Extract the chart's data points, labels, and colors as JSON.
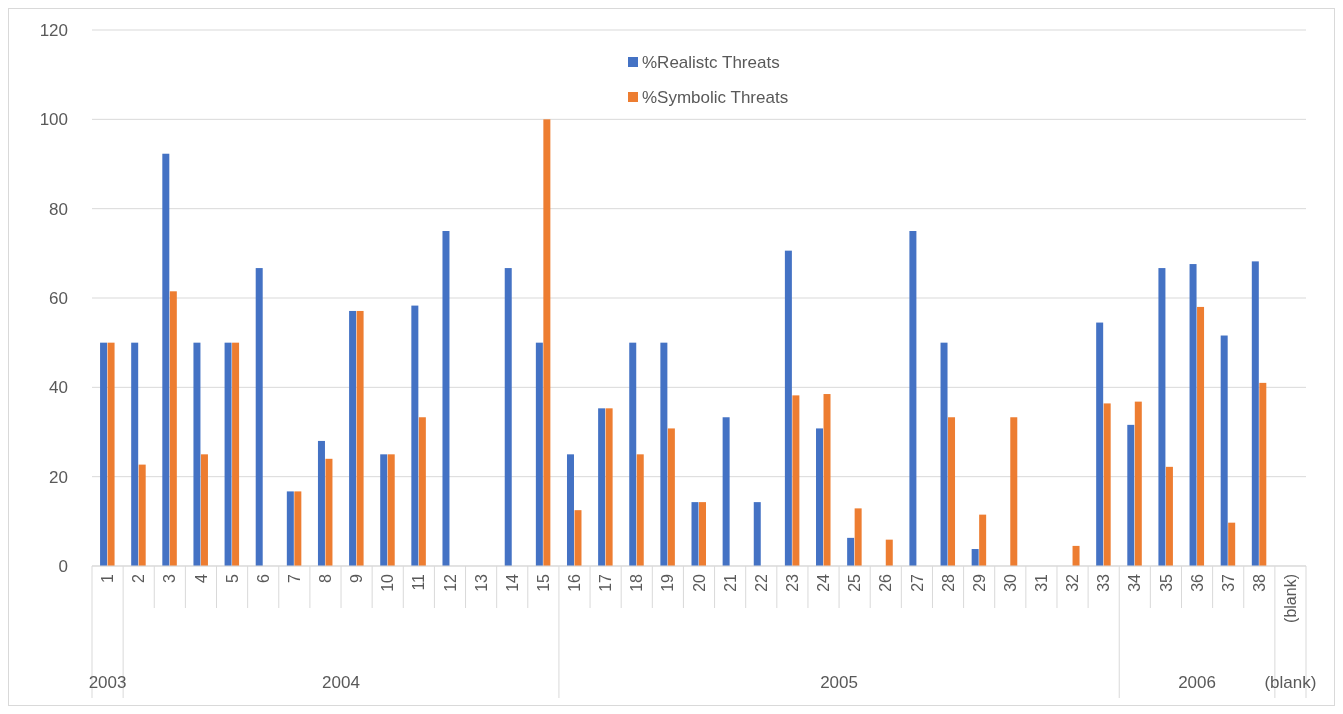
{
  "chart_data": {
    "type": "bar",
    "categories": [
      "1",
      "2",
      "3",
      "4",
      "5",
      "6",
      "7",
      "8",
      "9",
      "10",
      "11",
      "12",
      "13",
      "14",
      "15",
      "16",
      "17",
      "18",
      "19",
      "20",
      "21",
      "22",
      "23",
      "24",
      "25",
      "26",
      "27",
      "28",
      "29",
      "30",
      "31",
      "32",
      "33",
      "34",
      "35",
      "36",
      "37",
      "38",
      "(blank)"
    ],
    "series": [
      {
        "name": "%Realistc Threats",
        "color": "#4472c4",
        "values": [
          50,
          50,
          92.3,
          50,
          50,
          66.7,
          16.7,
          28,
          57.1,
          25,
          58.3,
          75,
          0,
          66.7,
          50,
          25,
          35.3,
          50,
          50,
          14.3,
          33.3,
          14.3,
          70.6,
          30.8,
          6.3,
          0,
          75,
          50,
          3.8,
          0,
          0,
          0,
          54.5,
          31.6,
          66.7,
          67.6,
          51.6,
          68.2,
          null
        ]
      },
      {
        "name": "%Symbolic Threats",
        "color": "#ed7d31",
        "values": [
          50,
          22.7,
          61.5,
          25,
          50,
          0,
          16.7,
          24,
          57.1,
          25,
          33.3,
          0,
          0,
          0,
          100,
          12.5,
          35.3,
          25,
          30.8,
          14.3,
          0,
          0,
          38.2,
          38.5,
          12.9,
          5.9,
          0,
          33.3,
          11.5,
          33.3,
          0,
          4.5,
          36.4,
          36.8,
          22.2,
          58,
          9.7,
          41,
          null
        ]
      }
    ],
    "ylim": [
      0,
      120
    ],
    "yticks": [
      0,
      20,
      40,
      60,
      80,
      100,
      120
    ],
    "grid": "y",
    "legend": "top",
    "annotations": [
      "2003",
      "2004",
      "2005",
      "2006",
      "(blank)"
    ]
  }
}
